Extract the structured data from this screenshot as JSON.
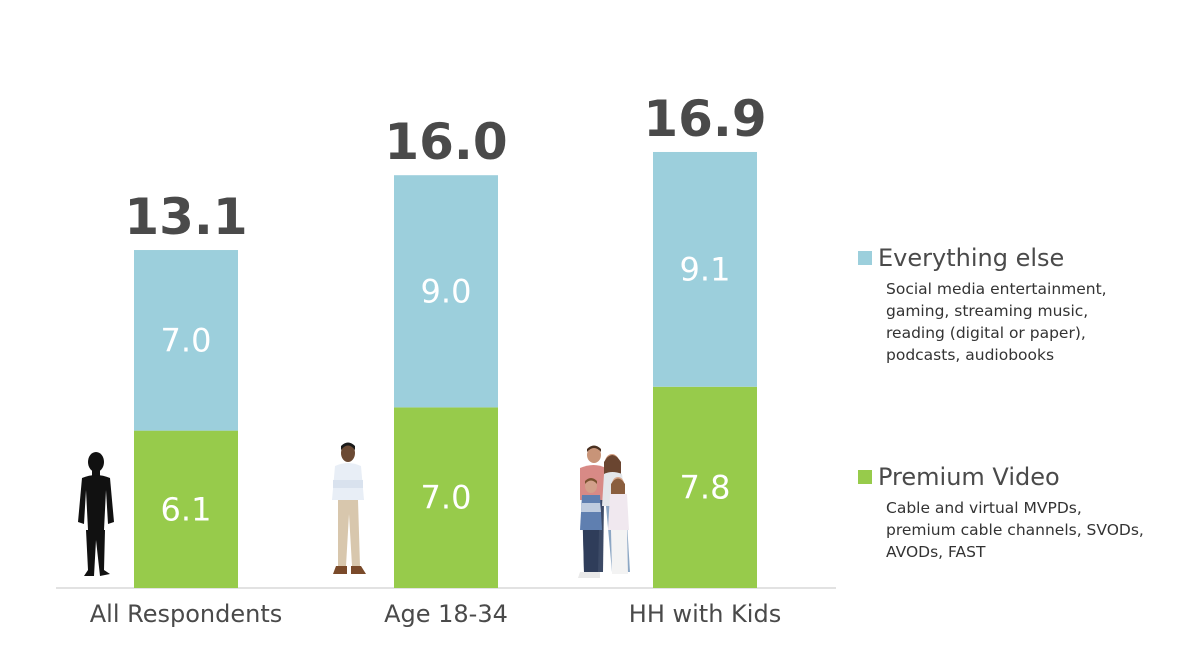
{
  "chart_data": {
    "type": "bar",
    "stacked": true,
    "categories": [
      "All Respondents",
      "Age 18-34",
      "HH with Kids"
    ],
    "series": [
      {
        "name": "Premium Video",
        "values": [
          6.1,
          7.0,
          7.8
        ],
        "color": "#97cb4b"
      },
      {
        "name": "Everything else",
        "values": [
          7.0,
          9.0,
          9.1
        ],
        "color": "#9ccfdc"
      }
    ],
    "totals": [
      "13.1",
      "16.0",
      "16.9"
    ],
    "segment_labels": [
      [
        "6.1",
        "7.0",
        "7.8"
      ],
      [
        "7.0",
        "9.0",
        "9.1"
      ]
    ],
    "ylim": [
      0,
      17
    ]
  },
  "legend": [
    {
      "title": "Everything else",
      "color": "#9ccfdc",
      "description": "Social media entertainment, gaming, streaming music, reading (digital or paper), podcasts, audiobooks"
    },
    {
      "title": "Premium Video",
      "color": "#97cb4b",
      "description": "Cable and virtual MVPDs, premium cable channels, SVODs, AVODs, FAST"
    }
  ],
  "icons": [
    "person-silhouette-icon",
    "young-man-photo-icon",
    "family-photo-icon"
  ]
}
